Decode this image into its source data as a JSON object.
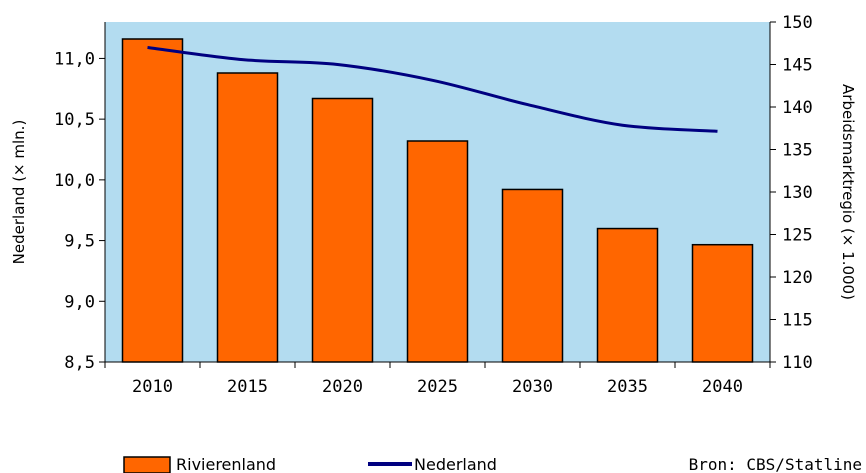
{
  "chart_data": {
    "type": "bar",
    "categories": [
      "2010",
      "2015",
      "2020",
      "2025",
      "2030",
      "2035",
      "2040"
    ],
    "series": [
      {
        "name": "Rivierenland",
        "type": "bar",
        "axis": "right",
        "values": [
          148,
          144,
          141,
          136,
          130.3,
          125.7,
          123.8
        ],
        "color": "#ff6600"
      },
      {
        "name": "Nederland",
        "type": "line",
        "axis": "left",
        "values": [
          11.09,
          10.99,
          10.95,
          10.82,
          10.62,
          10.45,
          10.4
        ],
        "color": "#000080"
      }
    ],
    "y_left": {
      "label": "Nederland (× mln.)",
      "ylim": [
        8.5,
        11.3
      ],
      "ticks": [
        "8,5",
        "9,0",
        "9,5",
        "10,0",
        "10,5",
        "11,0"
      ],
      "tick_values": [
        8.5,
        9.0,
        9.5,
        10.0,
        10.5,
        11.0
      ]
    },
    "y_right": {
      "label": "Arbeidsmarktregio (× 1.000)",
      "ylim": [
        110,
        150
      ],
      "ticks": [
        "110",
        "115",
        "120",
        "125",
        "130",
        "135",
        "140",
        "145",
        "150"
      ]
    },
    "plot_background": "#b3dcf0",
    "legend": {
      "placement": "bottom",
      "entries": [
        "Rivierenland",
        "Nederland"
      ]
    },
    "source": "Bron: CBS/Statline"
  }
}
